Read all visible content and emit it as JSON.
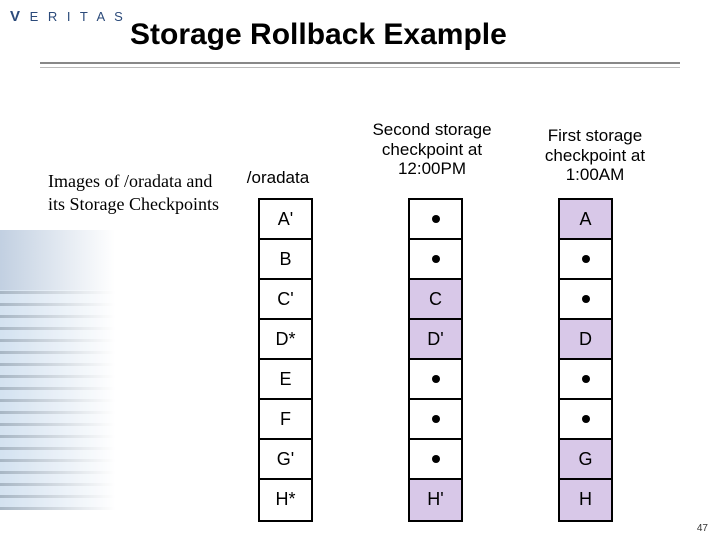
{
  "logo_text": "V E R I T A S",
  "title": "Storage Rollback Example",
  "caption": "Images of /oradata and its Storage Checkpoints",
  "page_number": "47",
  "headers": {
    "col0": "/oradata",
    "col1": "Second storage checkpoint at 12:00PM",
    "col2": "First storage checkpoint at 1:00AM"
  },
  "columns": {
    "col0": [
      {
        "label": "A'",
        "hilite": false
      },
      {
        "label": "B",
        "hilite": false
      },
      {
        "label": "C'",
        "hilite": false
      },
      {
        "label": "D*",
        "hilite": false
      },
      {
        "label": "E",
        "hilite": false
      },
      {
        "label": "F",
        "hilite": false
      },
      {
        "label": "G'",
        "hilite": false
      },
      {
        "label": "H*",
        "hilite": false
      }
    ],
    "col1": [
      {
        "label": "",
        "hilite": false,
        "dot": true
      },
      {
        "label": "",
        "hilite": false,
        "dot": true
      },
      {
        "label": "C",
        "hilite": true
      },
      {
        "label": "D'",
        "hilite": true
      },
      {
        "label": "",
        "hilite": false,
        "dot": true
      },
      {
        "label": "",
        "hilite": false,
        "dot": true
      },
      {
        "label": "",
        "hilite": false,
        "dot": true
      },
      {
        "label": "H'",
        "hilite": true
      }
    ],
    "col2": [
      {
        "label": "A",
        "hilite": true
      },
      {
        "label": "",
        "hilite": false,
        "dot": true
      },
      {
        "label": "",
        "hilite": false,
        "dot": true
      },
      {
        "label": "D",
        "hilite": true
      },
      {
        "label": "",
        "hilite": false,
        "dot": true
      },
      {
        "label": "",
        "hilite": false,
        "dot": true
      },
      {
        "label": "G",
        "hilite": true
      },
      {
        "label": "H",
        "hilite": true
      }
    ]
  },
  "colors": {
    "highlight": "#d8c8e8",
    "border": "#000000",
    "bg": "#ffffff"
  }
}
